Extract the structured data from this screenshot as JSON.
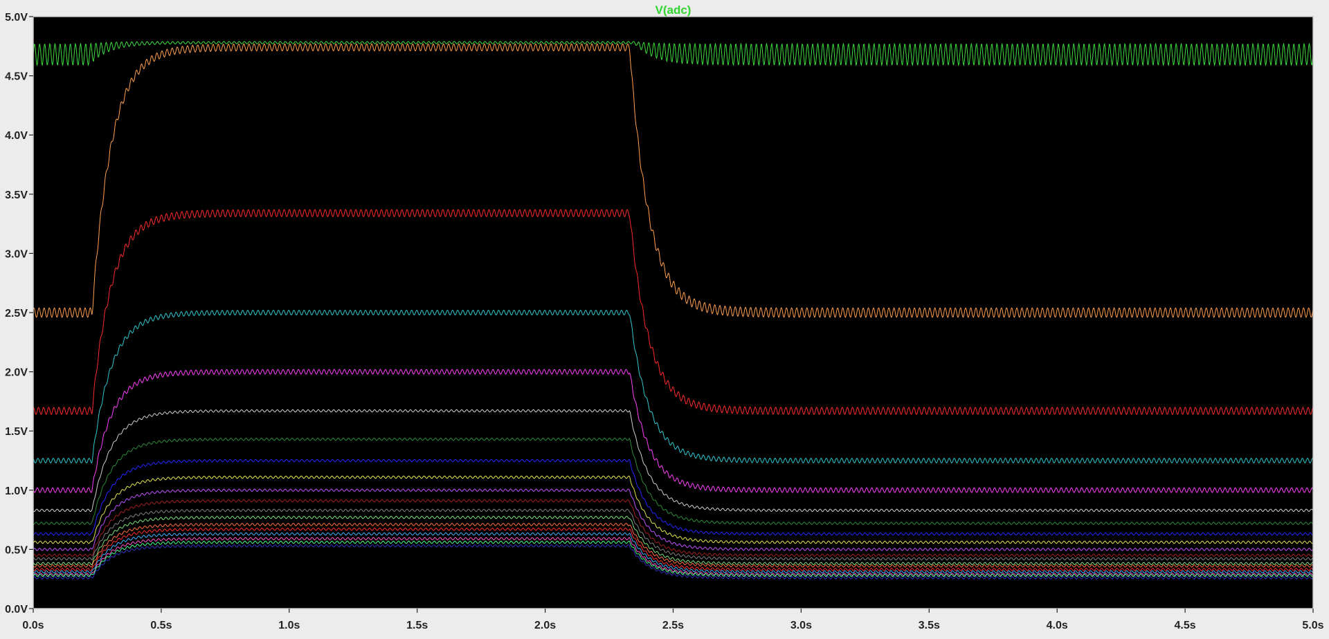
{
  "chart_data": {
    "type": "line",
    "title": "V(adc)",
    "title_color": "#2fd62f",
    "xlabel": "",
    "ylabel": "",
    "x_unit": "s",
    "y_unit": "V",
    "xlim": [
      0.0,
      5.0
    ],
    "ylim": [
      0.0,
      5.0
    ],
    "x_ticks": [
      "0.0s",
      "0.5s",
      "1.0s",
      "1.5s",
      "2.0s",
      "2.5s",
      "3.0s",
      "3.5s",
      "4.0s",
      "4.5s",
      "5.0s"
    ],
    "y_ticks": [
      "0.0V",
      "0.5V",
      "1.0V",
      "1.5V",
      "2.0V",
      "2.5V",
      "3.0V",
      "3.5V",
      "4.0V",
      "4.5V",
      "5.0V"
    ],
    "grid": false,
    "legend": "top-center",
    "background": "#000000",
    "axis_color": "#c8c8c8",
    "ripple_period_s": 0.02,
    "series": [
      {
        "color": "#3fe03f",
        "baseline": 4.68,
        "high": 4.78,
        "rise_start": 0.22,
        "fall_start": 2.35,
        "ripple_low": 0.09,
        "ripple_high": 0.01
      },
      {
        "color": "#ffa050",
        "baseline": 2.5,
        "high": 4.74,
        "rise_start": 0.23,
        "fall_start": 2.33,
        "ripple_low": 0.04,
        "ripple_high": 0.03
      },
      {
        "color": "#ff2a2a",
        "baseline": 1.67,
        "high": 3.34,
        "rise_start": 0.23,
        "fall_start": 2.33,
        "ripple_low": 0.03,
        "ripple_high": 0.03
      },
      {
        "color": "#30c8d0",
        "baseline": 1.25,
        "high": 2.5,
        "rise_start": 0.23,
        "fall_start": 2.33,
        "ripple_low": 0.02,
        "ripple_high": 0.02
      },
      {
        "color": "#ff40ff",
        "baseline": 1.0,
        "high": 2.0,
        "rise_start": 0.23,
        "fall_start": 2.33,
        "ripple_low": 0.02,
        "ripple_high": 0.02
      },
      {
        "color": "#d0d0d0",
        "baseline": 0.83,
        "high": 1.67,
        "rise_start": 0.23,
        "fall_start": 2.33,
        "ripple_low": 0.01,
        "ripple_high": 0.01
      },
      {
        "color": "#2e8b3a",
        "baseline": 0.72,
        "high": 1.43,
        "rise_start": 0.23,
        "fall_start": 2.33,
        "ripple_low": 0.01,
        "ripple_high": 0.01
      },
      {
        "color": "#2626ff",
        "baseline": 0.63,
        "high": 1.25,
        "rise_start": 0.23,
        "fall_start": 2.33,
        "ripple_low": 0.01,
        "ripple_high": 0.01
      },
      {
        "color": "#e6e64a",
        "baseline": 0.56,
        "high": 1.11,
        "rise_start": 0.23,
        "fall_start": 2.33,
        "ripple_low": 0.01,
        "ripple_high": 0.01
      },
      {
        "color": "#c050ff",
        "baseline": 0.5,
        "high": 1.0,
        "rise_start": 0.23,
        "fall_start": 2.33,
        "ripple_low": 0.01,
        "ripple_high": 0.01
      },
      {
        "color": "#a02020",
        "baseline": 0.45,
        "high": 0.91,
        "rise_start": 0.23,
        "fall_start": 2.33,
        "ripple_low": 0.01,
        "ripple_high": 0.01
      },
      {
        "color": "#808080",
        "baseline": 0.42,
        "high": 0.83,
        "rise_start": 0.23,
        "fall_start": 2.33,
        "ripple_low": 0.01,
        "ripple_high": 0.01
      },
      {
        "color": "#7ce07c",
        "baseline": 0.38,
        "high": 0.77,
        "rise_start": 0.23,
        "fall_start": 2.33,
        "ripple_low": 0.01,
        "ripple_high": 0.01
      },
      {
        "color": "#ff7040",
        "baseline": 0.36,
        "high": 0.71,
        "rise_start": 0.23,
        "fall_start": 2.33,
        "ripple_low": 0.01,
        "ripple_high": 0.01
      },
      {
        "color": "#ff3030",
        "baseline": 0.33,
        "high": 0.67,
        "rise_start": 0.23,
        "fall_start": 2.33,
        "ripple_low": 0.01,
        "ripple_high": 0.01
      },
      {
        "color": "#40b0ff",
        "baseline": 0.31,
        "high": 0.63,
        "rise_start": 0.23,
        "fall_start": 2.33,
        "ripple_low": 0.01,
        "ripple_high": 0.01
      },
      {
        "color": "#ff50d0",
        "baseline": 0.29,
        "high": 0.59,
        "rise_start": 0.23,
        "fall_start": 2.33,
        "ripple_low": 0.01,
        "ripple_high": 0.01
      },
      {
        "color": "#40ff90",
        "baseline": 0.28,
        "high": 0.56,
        "rise_start": 0.23,
        "fall_start": 2.33,
        "ripple_low": 0.01,
        "ripple_high": 0.01
      },
      {
        "color": "#3030c0",
        "baseline": 0.26,
        "high": 0.53,
        "rise_start": 0.23,
        "fall_start": 2.33,
        "ripple_low": 0.01,
        "ripple_high": 0.01
      }
    ]
  }
}
